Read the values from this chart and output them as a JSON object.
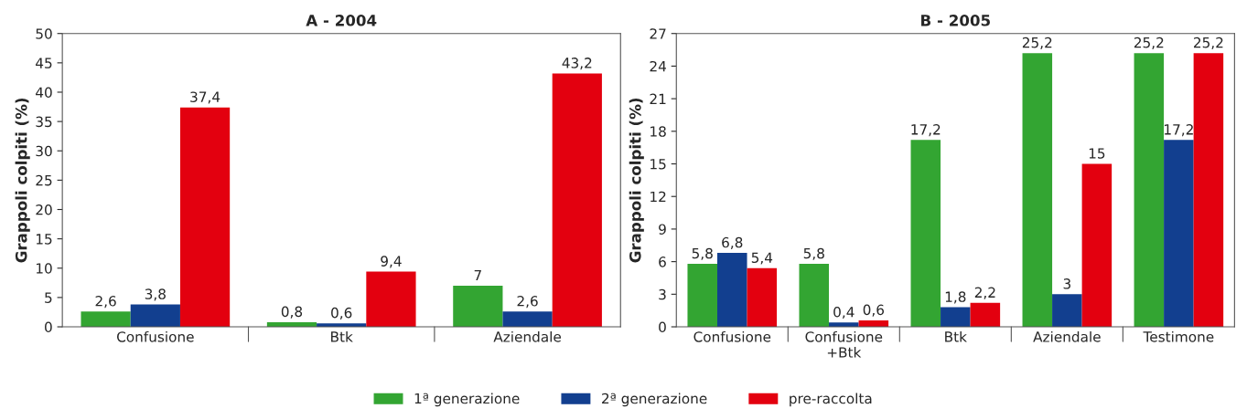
{
  "chart_data": [
    {
      "type": "bar",
      "title": "A - 2004",
      "ylabel": "Grappoli colpiti (%)",
      "categories": [
        "Confusione",
        "Btk",
        "Aziendale"
      ],
      "series": [
        {
          "name": "1ª generazione",
          "color": "#33a532",
          "values": [
            2.6,
            0.8,
            7
          ],
          "value_labels": [
            "2,6",
            "0,8",
            "7"
          ]
        },
        {
          "name": "2ª generazione",
          "color": "#123f8f",
          "values": [
            3.8,
            0.6,
            2.6
          ],
          "value_labels": [
            "3,8",
            "0,6",
            "2,6"
          ]
        },
        {
          "name": "pre-raccolta",
          "color": "#e3000f",
          "values": [
            37.4,
            9.4,
            43.2
          ],
          "value_labels": [
            "37,4",
            "9,4",
            "43,2"
          ]
        }
      ],
      "ylim": [
        0,
        50
      ],
      "yticks": [
        0,
        5,
        10,
        15,
        20,
        25,
        30,
        35,
        40,
        45,
        50
      ],
      "grid": false,
      "legend": "bottom"
    },
    {
      "type": "bar",
      "title": "B - 2005",
      "ylabel": "Grappoli colpiti (%)",
      "categories": [
        "Confusione",
        "Confusione\n+Btk",
        "Btk",
        "Aziendale",
        "Testimone"
      ],
      "series": [
        {
          "color": "#33a532",
          "values": [
            5.8,
            5.8,
            17.2,
            25.2,
            25.2
          ],
          "value_labels": [
            "5,8",
            "5,8",
            "17,2",
            "25,2",
            "25,2"
          ]
        },
        {
          "color": "#123f8f",
          "values": [
            6.8,
            0.4,
            1.8,
            3,
            17.2
          ],
          "value_labels": [
            "6,8",
            "0,4",
            "1,8",
            "3",
            "17,2"
          ]
        },
        {
          "color": "#e3000f",
          "values": [
            5.4,
            0.6,
            2.2,
            15,
            25.2
          ],
          "value_labels": [
            "5,4",
            "0,6",
            "2,2",
            "15",
            "25,2"
          ]
        }
      ],
      "ylim": [
        0,
        27
      ],
      "yticks": [
        0,
        3,
        6,
        9,
        12,
        15,
        18,
        21,
        24,
        27
      ],
      "grid": false
    }
  ]
}
